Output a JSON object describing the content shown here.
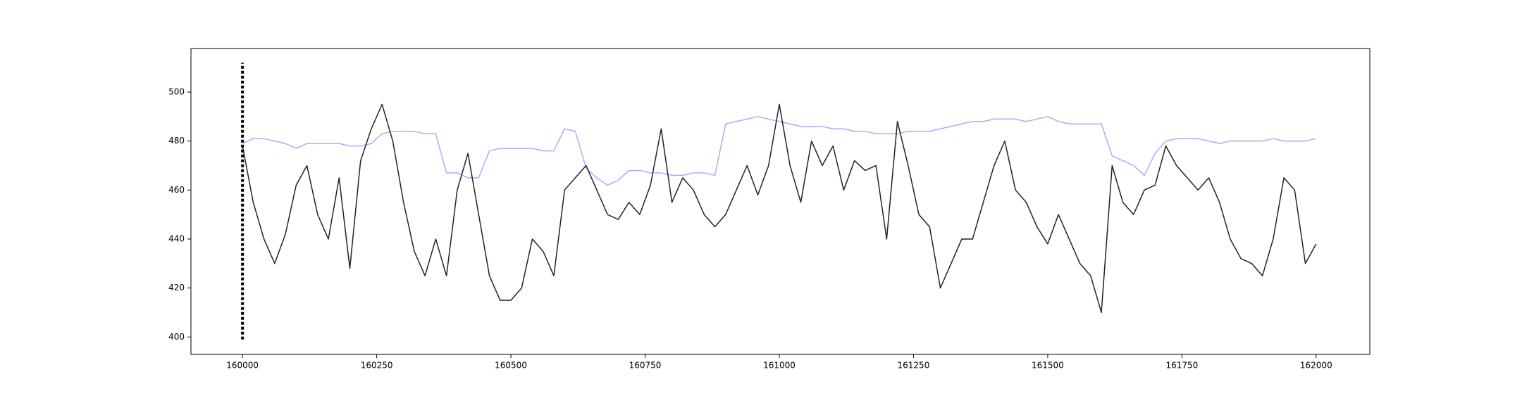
{
  "chart_data": {
    "type": "line",
    "x": [
      160000,
      160020,
      160040,
      160060,
      160080,
      160100,
      160120,
      160140,
      160160,
      160180,
      160200,
      160220,
      160240,
      160260,
      160280,
      160300,
      160320,
      160340,
      160360,
      160380,
      160400,
      160420,
      160440,
      160460,
      160480,
      160500,
      160520,
      160540,
      160560,
      160580,
      160600,
      160620,
      160640,
      160660,
      160680,
      160700,
      160720,
      160740,
      160760,
      160780,
      160800,
      160820,
      160840,
      160860,
      160880,
      160900,
      160920,
      160940,
      160960,
      160980,
      161000,
      161020,
      161040,
      161060,
      161080,
      161100,
      161120,
      161140,
      161160,
      161180,
      161200,
      161220,
      161240,
      161260,
      161280,
      161300,
      161320,
      161340,
      161360,
      161380,
      161400,
      161420,
      161440,
      161460,
      161480,
      161500,
      161520,
      161540,
      161560,
      161580,
      161600,
      161620,
      161640,
      161660,
      161680,
      161700,
      161720,
      161740,
      161760,
      161780,
      161800,
      161820,
      161840,
      161860,
      161880,
      161900,
      161920,
      161940,
      161960,
      161980,
      162000
    ],
    "series": [
      {
        "color": "#aaaaff",
        "values": [
          479,
          481,
          481,
          480,
          479,
          477,
          479,
          479,
          479,
          479,
          478,
          478,
          479,
          483,
          484,
          484,
          484,
          483,
          483,
          467,
          467,
          465,
          465,
          476,
          477,
          477,
          477,
          477,
          476,
          476,
          485,
          484,
          469,
          465,
          462,
          464,
          468,
          468,
          467,
          467,
          466,
          466,
          467,
          467,
          466,
          487,
          488,
          489,
          490,
          489,
          488,
          487,
          486,
          486,
          486,
          485,
          485,
          484,
          484,
          483,
          483,
          483,
          484,
          484,
          484,
          485,
          486,
          487,
          488,
          488,
          489,
          489,
          489,
          488,
          489,
          490,
          488,
          487,
          487,
          487,
          487,
          474,
          472,
          470,
          466,
          475,
          480,
          481,
          481,
          481,
          480,
          479,
          480,
          480,
          480,
          480,
          481,
          480,
          480,
          480,
          481
        ]
      },
      {
        "color": "#222222",
        "values": [
          478,
          455,
          440,
          430,
          442,
          462,
          470,
          450,
          440,
          465,
          428,
          472,
          485,
          495,
          480,
          455,
          435,
          425,
          440,
          425,
          460,
          475,
          450,
          425,
          415,
          415,
          420,
          440,
          435,
          425,
          460,
          465,
          470,
          460,
          450,
          448,
          455,
          450,
          462,
          485,
          455,
          465,
          460,
          450,
          445,
          450,
          460,
          470,
          458,
          470,
          495,
          470,
          455,
          480,
          470,
          478,
          460,
          472,
          468,
          470,
          440,
          488,
          470,
          450,
          445,
          420,
          430,
          440,
          440,
          455,
          470,
          480,
          460,
          455,
          445,
          438,
          450,
          440,
          430,
          425,
          410,
          470,
          455,
          450,
          460,
          462,
          478,
          470,
          465,
          460,
          465,
          455,
          440,
          432,
          430,
          425,
          440,
          465,
          460,
          430,
          438
        ]
      }
    ],
    "vline": {
      "x": 160000,
      "y": [
        399,
        512
      ],
      "color": "#000000"
    },
    "xlim": [
      159904,
      162100
    ],
    "ylim": [
      392.9,
      517.8
    ],
    "xticks": [
      160000,
      160250,
      160500,
      160750,
      161000,
      161250,
      161500,
      161750,
      162000
    ],
    "yticks": [
      400,
      420,
      440,
      460,
      480,
      500
    ]
  }
}
